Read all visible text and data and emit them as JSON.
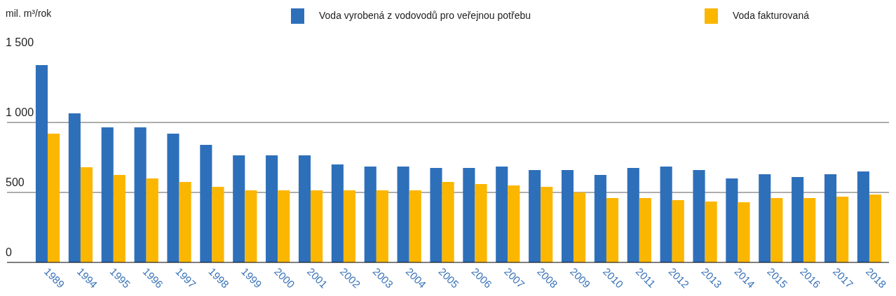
{
  "chart_data": {
    "type": "bar",
    "ylabel": "mil. m³/rok",
    "categories": [
      "1989",
      "1994",
      "1995",
      "1996",
      "1997",
      "1998",
      "1999",
      "2000",
      "2001",
      "2002",
      "2003",
      "2004",
      "2005",
      "2006",
      "2007",
      "2008",
      "2009",
      "2010",
      "2011",
      "2012",
      "2013",
      "2014",
      "2015",
      "2016",
      "2017",
      "2018"
    ],
    "series": [
      {
        "name": "Voda vyrobená z vodovodů pro veřejnou potřebu",
        "color": "#2e6fba",
        "values": [
          1410,
          1065,
          965,
          965,
          920,
          840,
          765,
          765,
          765,
          700,
          685,
          685,
          675,
          675,
          685,
          660,
          660,
          625,
          675,
          685,
          660,
          600,
          630,
          610,
          630,
          650
        ]
      },
      {
        "name": "Voda fakturovaná",
        "color": "#fbb600",
        "values": [
          920,
          680,
          625,
          600,
          575,
          540,
          515,
          515,
          515,
          515,
          515,
          515,
          575,
          560,
          550,
          540,
          500,
          460,
          460,
          445,
          435,
          430,
          460,
          460,
          470,
          485
        ]
      }
    ],
    "ylim": [
      0,
      1500
    ],
    "yticks": [
      0,
      500,
      {
        "value": 1000,
        "label": "1 000"
      },
      {
        "value": 1500,
        "label": "1 500"
      }
    ],
    "grid": "y",
    "legend": "top"
  }
}
